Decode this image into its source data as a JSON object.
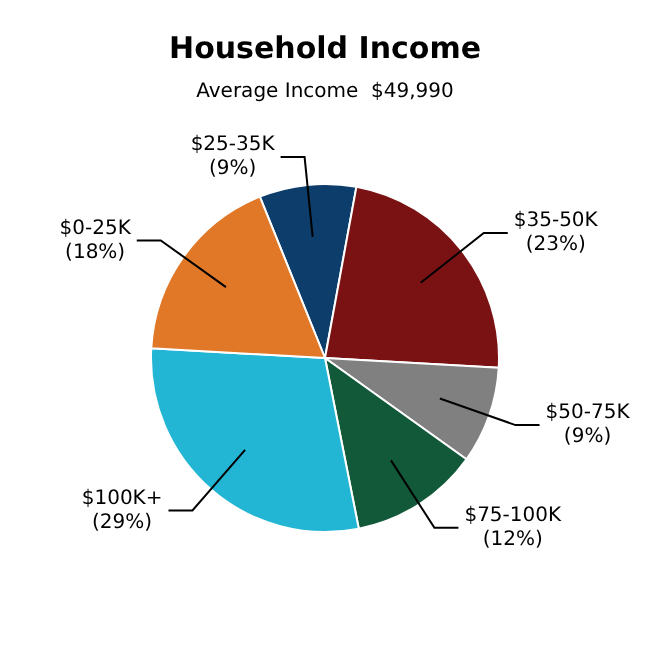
{
  "chart_data": {
    "type": "pie",
    "title": "Household Income",
    "subtitle": "Average Income  $49,990",
    "categories": [
      "$25-35K",
      "$35-50K",
      "$50-75K",
      "$75-100K",
      "$100K+",
      "$0-25K"
    ],
    "values": [
      9,
      23,
      9,
      12,
      29,
      18
    ],
    "value_labels": [
      "(9%)",
      "(23%)",
      "(9%)",
      "(12%)",
      "(29%)",
      "(18%)"
    ],
    "colors": [
      "#0d3d6b",
      "#7a1214",
      "#808080",
      "#12593a",
      "#22b5d4",
      "#e07828"
    ],
    "legend": false
  }
}
